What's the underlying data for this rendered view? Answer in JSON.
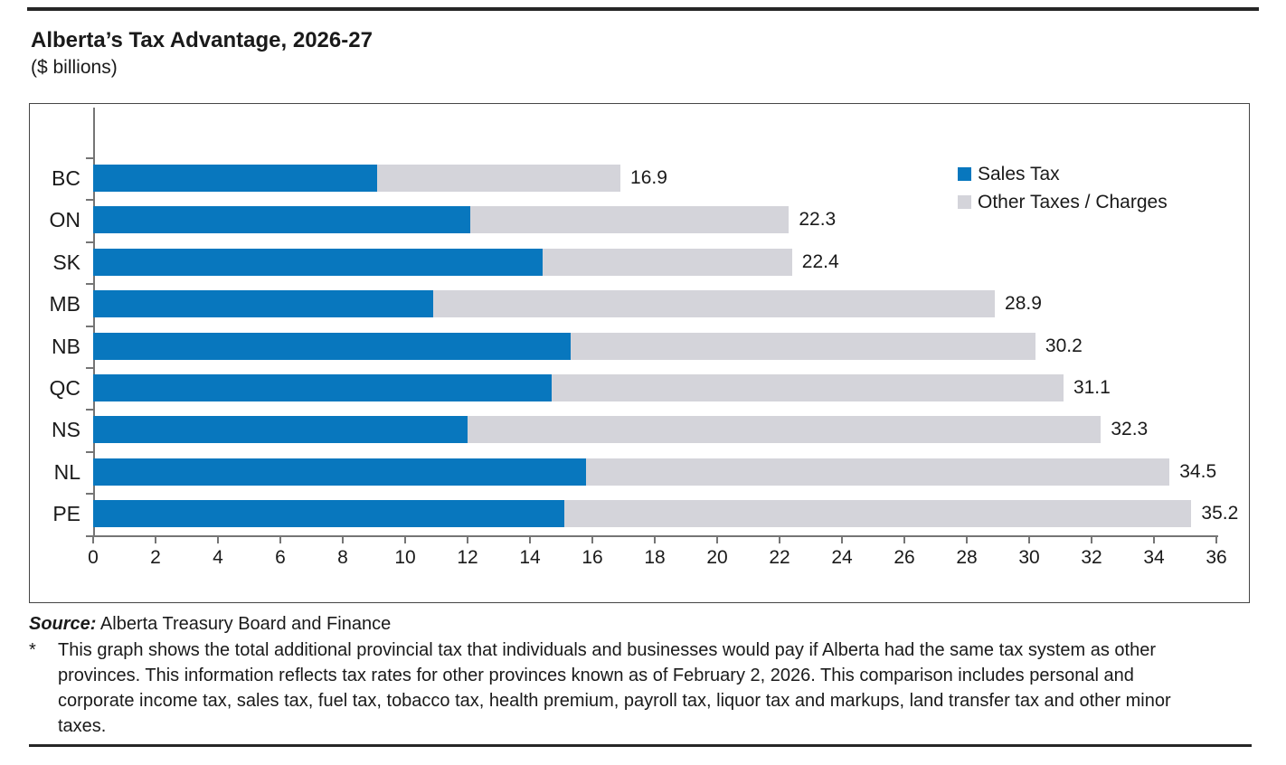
{
  "chart_data": {
    "type": "bar",
    "orientation": "horizontal",
    "stacked": true,
    "title": "Alberta’s Tax Advantage, 2026-27",
    "subtitle": "($ billions)",
    "categories": [
      "BC",
      "ON",
      "SK",
      "MB",
      "NB",
      "QC",
      "NS",
      "NL",
      "PE"
    ],
    "series": [
      {
        "name": "Sales Tax",
        "color": "#0877BE",
        "values": [
          9.1,
          12.1,
          14.4,
          10.9,
          15.3,
          14.7,
          12.0,
          15.8,
          15.1
        ]
      },
      {
        "name": "Other Taxes / Charges",
        "color": "#D4D4DA",
        "values": [
          7.8,
          10.2,
          8.0,
          18.0,
          14.9,
          16.4,
          20.3,
          18.7,
          20.1
        ]
      }
    ],
    "totals": [
      16.9,
      22.3,
      22.4,
      28.9,
      30.2,
      31.1,
      32.3,
      34.5,
      35.2
    ],
    "total_labels": [
      "16.9",
      "22.3",
      "22.4",
      "28.9",
      "30.2",
      "31.1",
      "32.3",
      "34.5",
      "35.2"
    ],
    "xlim": [
      0,
      36
    ],
    "x_ticks": [
      0,
      2,
      4,
      6,
      8,
      10,
      12,
      14,
      16,
      18,
      20,
      22,
      24,
      26,
      28,
      30,
      32,
      34,
      36
    ],
    "grid": false,
    "legend_position": "top-right"
  },
  "footer": {
    "source_label": "Source:",
    "source_text": " Alberta Treasury Board and Finance",
    "footnote_marker": "*",
    "footnote_text": "This graph shows the total additional provincial tax that individuals and businesses would pay if Alberta had the same tax system as other provinces. This information reflects tax rates for other provinces known as of February 2, 2026. This comparison includes personal and corporate income tax, sales tax, fuel tax, tobacco tax, health premium, payroll tax, liquor tax and markups, land transfer tax and other minor taxes."
  }
}
